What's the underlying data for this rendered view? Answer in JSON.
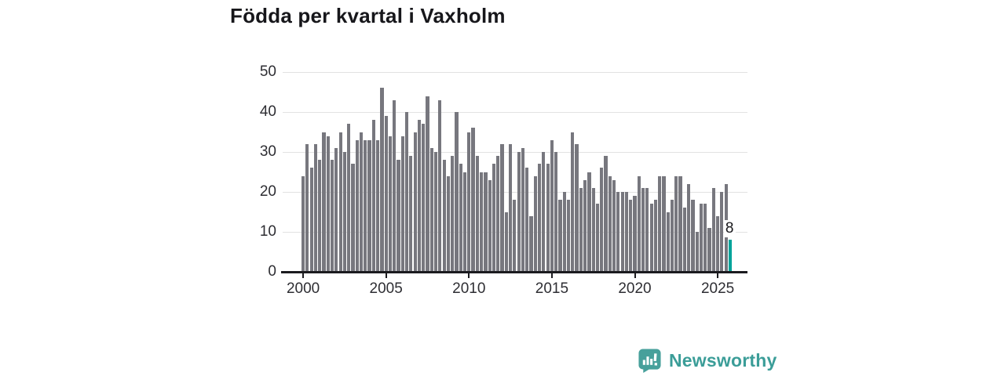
{
  "title": "Födda per kvartal i Vaxholm",
  "chart_data": {
    "type": "bar",
    "title": "Födda per kvartal i Vaxholm",
    "x_axis": {
      "tick_labels": [
        "2000",
        "2005",
        "2010",
        "2015",
        "2020",
        "2025"
      ],
      "bars_per_tick_interval": 20,
      "frequency": "quarterly"
    },
    "y_axis": {
      "ticks": [
        0,
        10,
        20,
        30,
        40,
        50
      ],
      "ylim": [
        0,
        50
      ]
    },
    "grid": true,
    "legend": "none",
    "values": [
      24,
      32,
      26,
      32,
      28,
      35,
      34,
      28,
      31,
      35,
      30,
      37,
      27,
      33,
      35,
      33,
      33,
      38,
      33,
      46,
      39,
      34,
      43,
      28,
      34,
      40,
      29,
      35,
      38,
      37,
      44,
      31,
      30,
      43,
      28,
      24,
      29,
      40,
      27,
      25,
      35,
      36,
      29,
      25,
      25,
      23,
      27,
      29,
      32,
      15,
      32,
      18,
      30,
      31,
      26,
      14,
      24,
      27,
      30,
      27,
      33,
      30,
      18,
      20,
      18,
      35,
      32,
      21,
      23,
      25,
      21,
      17,
      26,
      29,
      24,
      23,
      20,
      20,
      20,
      18,
      19,
      24,
      21,
      21,
      17,
      18,
      24,
      24,
      15,
      18,
      24,
      24,
      16,
      22,
      18,
      10,
      17,
      17,
      11,
      21,
      14,
      20,
      22,
      8
    ],
    "highlight_last_bar": true,
    "last_bar_value_label": "8",
    "colors": {
      "bar": "#77777e",
      "highlight": "#00a39a",
      "gridline": "#e2e2e2",
      "axis": "#1b1b1f",
      "labels": "#2e2e33"
    }
  },
  "annotation": {
    "value": "8"
  },
  "branding": {
    "logo_text": "Newsworthy",
    "text_color": "#3b9d98",
    "icon_color": "#47a09b"
  }
}
